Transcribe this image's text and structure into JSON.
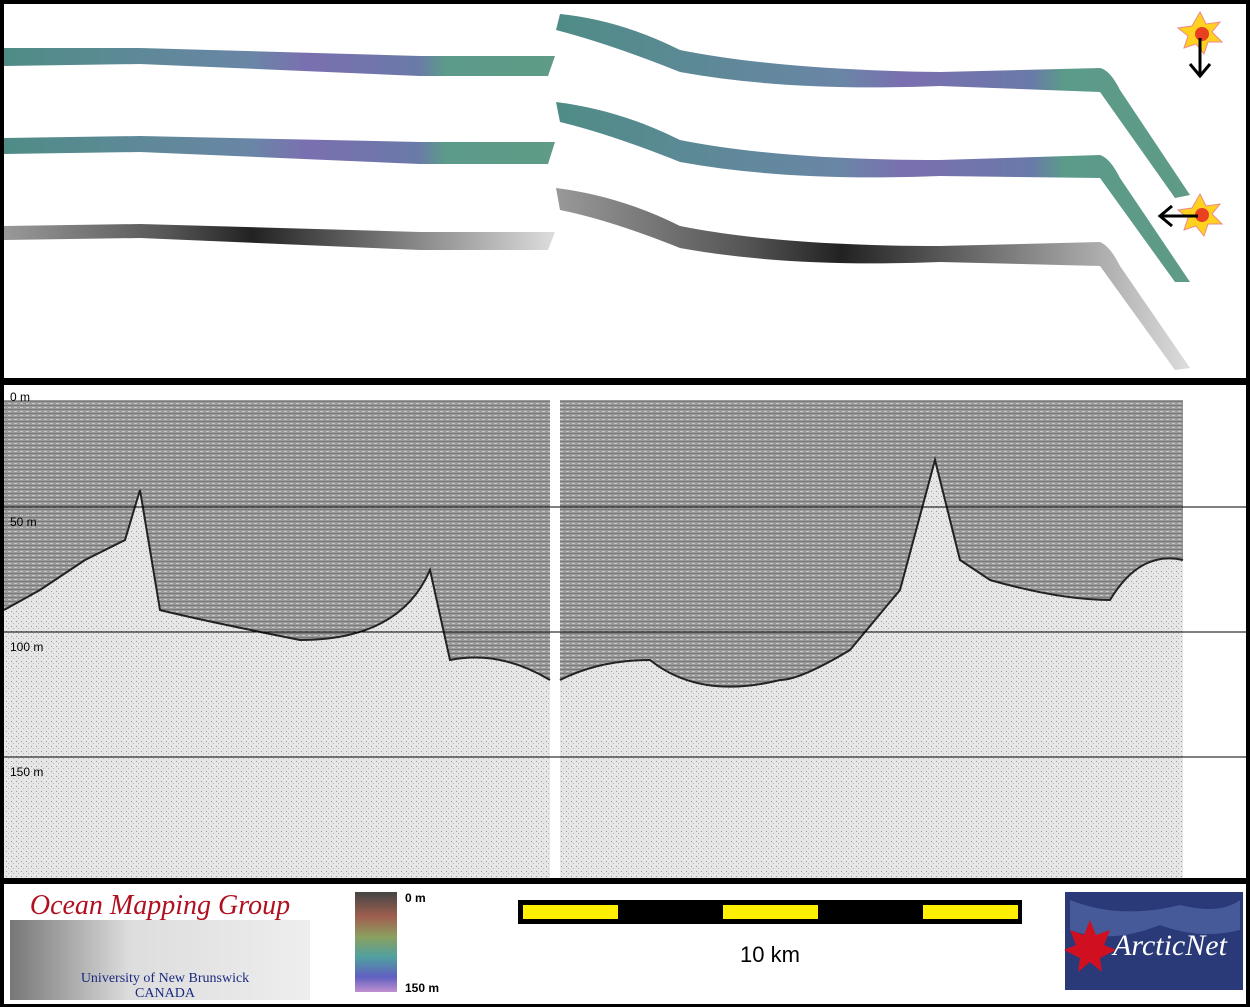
{
  "profile": {
    "depth_labels": [
      "0 m",
      "50 m",
      "100 m",
      "150 m"
    ]
  },
  "footer": {
    "logo_left": {
      "title": "Ocean Mapping Group",
      "subtitle": "University of New Brunswick",
      "country": "CANADA"
    },
    "colorbar": {
      "top": "0 m",
      "bottom": "150 m"
    },
    "scale_bar": {
      "label": "10 km"
    },
    "logo_right": {
      "label": "ArcticNet"
    }
  }
}
